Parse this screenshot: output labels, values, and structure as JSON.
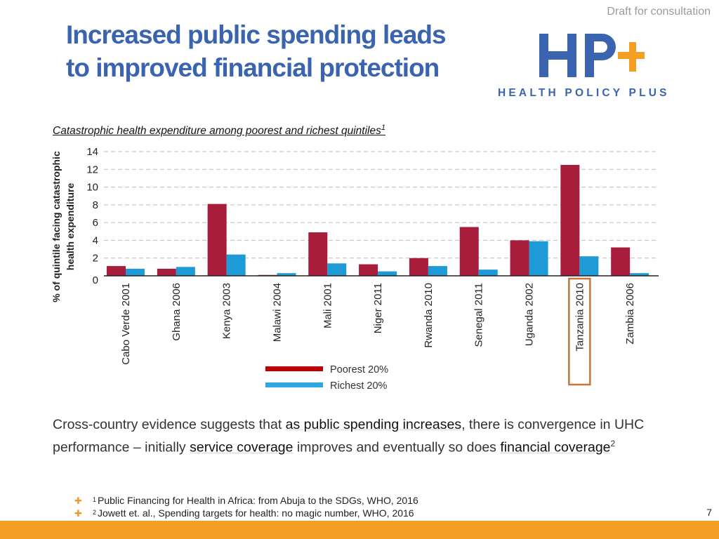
{
  "header": {
    "draft_label": "Draft for consultation",
    "title_line1": "Increased public spending leads",
    "title_line2": "to improved financial protection",
    "logo_mark": "HP+",
    "logo_text": "HEALTH POLICY PLUS"
  },
  "chart_title": {
    "text": "Catastrophic health expenditure among poorest and richest quintiles",
    "footnote_ref": "1"
  },
  "chart_data": {
    "type": "bar",
    "title": "Catastrophic health expenditure among poorest and richest quintiles",
    "xlabel": "",
    "ylabel": "% of quintile facing catastrophic health expenditure",
    "ylabel_lines": [
      "% of quintile facing catastrophic",
      "health expenditure"
    ],
    "ylim": [
      0,
      14
    ],
    "yticks": [
      0,
      2,
      4,
      6,
      8,
      10,
      12,
      14
    ],
    "grid": "dashed horizontal",
    "categories": [
      "Cabo Verde 2001",
      "Ghana 2006",
      "Kenya 2003",
      "Malawi 2004",
      "Mali 2001",
      "Niger 2011",
      "Rwanda 2010",
      "Senegal 2011",
      "Uganda 2002",
      "Tanzania 2010",
      "Zambia 2006"
    ],
    "series": [
      {
        "name": "Poorest 20%",
        "color": "#a81c3c",
        "values": [
          1.1,
          0.8,
          8.1,
          0.1,
          4.9,
          1.3,
          2.0,
          5.5,
          4.0,
          12.5,
          3.2
        ]
      },
      {
        "name": "Richest 20%",
        "color": "#1e9ad6",
        "values": [
          0.8,
          1.0,
          2.4,
          0.3,
          1.4,
          0.5,
          1.1,
          0.7,
          3.9,
          2.2,
          0.3
        ]
      }
    ],
    "legend": [
      {
        "label": "Poorest 20%",
        "color": "#c00000"
      },
      {
        "label": "Richest 20%",
        "color": "#29a9e1"
      }
    ],
    "legend_position": "bottom-center",
    "highlighted_category": "Tanzania 2010",
    "highlight_color": "#c8743a"
  },
  "body": {
    "p1": "Cross-country evidence suggests that ",
    "h1": "as public spending increases",
    "p2": ", there is convergence in UHC performance – initially ",
    "h2": "service coverage",
    "p3": " improves and eventually so does ",
    "h3": "financial coverage",
    "sup": "2"
  },
  "footnotes": [
    {
      "num": "1",
      "text": "Public Financing for Health in Africa: from Abuja to the SDGs, WHO, 2016"
    },
    {
      "num": "2",
      "text": "Jowett et. al., Spending targets for health: no magic number, WHO, 2016"
    }
  ],
  "page_number": "7",
  "colors": {
    "title": "#3a64b0",
    "accent": "#f49e23",
    "logo_blue": "#3a64b0",
    "logo_plus": "#f49e23"
  }
}
